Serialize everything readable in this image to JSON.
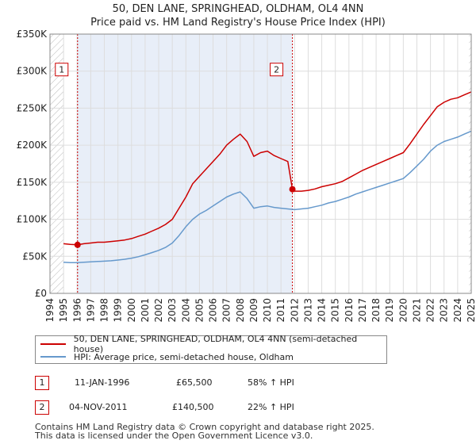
{
  "title_line1": "50, DEN LANE, SPRINGHEAD, OLDHAM, OL4 4NN",
  "title_line2": "Price paid vs. HM Land Registry's House Price Index (HPI)",
  "colors": {
    "property": "#cc0000",
    "hpi": "#6699cc",
    "shade": "#e8eef8",
    "grid": "#dddddd"
  },
  "chart_data": {
    "type": "line",
    "title": "50, DEN LANE, SPRINGHEAD, OLDHAM, OL4 4NN — Price paid vs. HM Land Registry's House Price Index (HPI)",
    "xlim": [
      1994,
      2025
    ],
    "ylim": [
      0,
      350000
    ],
    "y_ticks": [
      0,
      50000,
      100000,
      150000,
      200000,
      250000,
      300000,
      350000
    ],
    "y_tick_labels": [
      "£0",
      "£50K",
      "£100K",
      "£150K",
      "£200K",
      "£250K",
      "£300K",
      "£350K"
    ],
    "x_ticks": [
      1994,
      1995,
      1996,
      1997,
      1998,
      1999,
      2000,
      2001,
      2002,
      2003,
      2004,
      2005,
      2006,
      2007,
      2008,
      2009,
      2010,
      2011,
      2012,
      2013,
      2014,
      2015,
      2016,
      2017,
      2018,
      2019,
      2020,
      2021,
      2022,
      2023,
      2024,
      2025
    ],
    "series": [
      {
        "name": "50, DEN LANE, SPRINGHEAD, OLDHAM, OL4 4NN (semi-detached house)",
        "x": [
          1995.0,
          1995.5,
          1996.03,
          1996.5,
          1997.0,
          1997.5,
          1998.0,
          1998.5,
          1999.0,
          1999.5,
          2000.0,
          2000.5,
          2001.0,
          2001.5,
          2002.0,
          2002.5,
          2003.0,
          2003.5,
          2004.0,
          2004.5,
          2005.0,
          2005.5,
          2006.0,
          2006.5,
          2007.0,
          2007.5,
          2008.0,
          2008.5,
          2009.0,
          2009.5,
          2010.0,
          2010.5,
          2011.0,
          2011.5,
          2011.84,
          2012.0,
          2012.5,
          2013.0,
          2013.5,
          2014.0,
          2014.5,
          2015.0,
          2015.5,
          2016.0,
          2016.5,
          2017.0,
          2017.5,
          2018.0,
          2018.5,
          2019.0,
          2019.5,
          2020.0,
          2020.5,
          2021.0,
          2021.5,
          2022.0,
          2022.5,
          2023.0,
          2023.5,
          2024.0,
          2024.5,
          2025.0
        ],
        "y": [
          67000,
          66000,
          65500,
          67000,
          68000,
          69000,
          69000,
          70000,
          71000,
          72000,
          74000,
          77000,
          80000,
          84000,
          88000,
          93000,
          100000,
          115000,
          130000,
          148000,
          158000,
          168000,
          178000,
          188000,
          200000,
          208000,
          215000,
          205000,
          185000,
          190000,
          192000,
          186000,
          182000,
          178000,
          140500,
          138000,
          138000,
          139000,
          141000,
          144000,
          146000,
          148000,
          151000,
          156000,
          161000,
          166000,
          170000,
          174000,
          178000,
          182000,
          186000,
          190000,
          202000,
          215000,
          228000,
          240000,
          252000,
          258000,
          262000,
          264000,
          268000,
          272000
        ]
      },
      {
        "name": "HPI: Average price, semi-detached house, Oldham",
        "x": [
          1995.0,
          1995.5,
          1996.0,
          1996.5,
          1997.0,
          1997.5,
          1998.0,
          1998.5,
          1999.0,
          1999.5,
          2000.0,
          2000.5,
          2001.0,
          2001.5,
          2002.0,
          2002.5,
          2003.0,
          2003.5,
          2004.0,
          2004.5,
          2005.0,
          2005.5,
          2006.0,
          2006.5,
          2007.0,
          2007.5,
          2008.0,
          2008.5,
          2009.0,
          2009.5,
          2010.0,
          2010.5,
          2011.0,
          2011.5,
          2012.0,
          2012.5,
          2013.0,
          2013.5,
          2014.0,
          2014.5,
          2015.0,
          2015.5,
          2016.0,
          2016.5,
          2017.0,
          2017.5,
          2018.0,
          2018.5,
          2019.0,
          2019.5,
          2020.0,
          2020.5,
          2021.0,
          2021.5,
          2022.0,
          2022.5,
          2023.0,
          2023.5,
          2024.0,
          2024.5,
          2025.0
        ],
        "y": [
          42000,
          41500,
          41500,
          42000,
          42500,
          43000,
          43500,
          44000,
          45000,
          46000,
          47500,
          49500,
          52000,
          55000,
          58000,
          62000,
          68000,
          78000,
          90000,
          100000,
          107000,
          112000,
          118000,
          124000,
          130000,
          134000,
          137000,
          128000,
          115000,
          117000,
          118000,
          116000,
          115000,
          114000,
          113000,
          114000,
          115000,
          117000,
          119000,
          122000,
          124000,
          127000,
          130000,
          134000,
          137000,
          140000,
          143000,
          146000,
          149000,
          152000,
          155000,
          163000,
          172000,
          181000,
          192000,
          200000,
          205000,
          208000,
          211000,
          215000,
          219000
        ]
      }
    ],
    "annotations": [
      {
        "label": "1",
        "x": 1996.03,
        "y": 65500
      },
      {
        "label": "2",
        "x": 2011.84,
        "y": 140500
      }
    ],
    "shaded_range": [
      1996.03,
      2011.84
    ],
    "hatched_ranges": [
      [
        1994,
        1995
      ],
      [
        2024.83,
        2025
      ]
    ],
    "legend_position": "below"
  },
  "axes": {
    "y_labels": [
      "£0",
      "£50K",
      "£100K",
      "£150K",
      "£200K",
      "£250K",
      "£300K",
      "£350K"
    ],
    "x_labels": [
      "1994",
      "1995",
      "1996",
      "1997",
      "1998",
      "1999",
      "2000",
      "2001",
      "2002",
      "2003",
      "2004",
      "2005",
      "2006",
      "2007",
      "2008",
      "2009",
      "2010",
      "2011",
      "2012",
      "2013",
      "2014",
      "2015",
      "2016",
      "2017",
      "2018",
      "2019",
      "2020",
      "2021",
      "2022",
      "2023",
      "2024",
      "2025"
    ]
  },
  "legend": {
    "property_label": "50, DEN LANE, SPRINGHEAD, OLDHAM, OL4 4NN (semi-detached house)",
    "hpi_label": "HPI: Average price, semi-detached house, Oldham"
  },
  "transactions": [
    {
      "num": "1",
      "date": "11-JAN-1996",
      "price": "£65,500",
      "hpi": "58% ↑ HPI"
    },
    {
      "num": "2",
      "date": "04-NOV-2011",
      "price": "£140,500",
      "hpi": "22% ↑ HPI"
    }
  ],
  "footer": {
    "line1": "Contains HM Land Registry data © Crown copyright and database right 2025.",
    "line2": "This data is licensed under the Open Government Licence v3.0."
  }
}
